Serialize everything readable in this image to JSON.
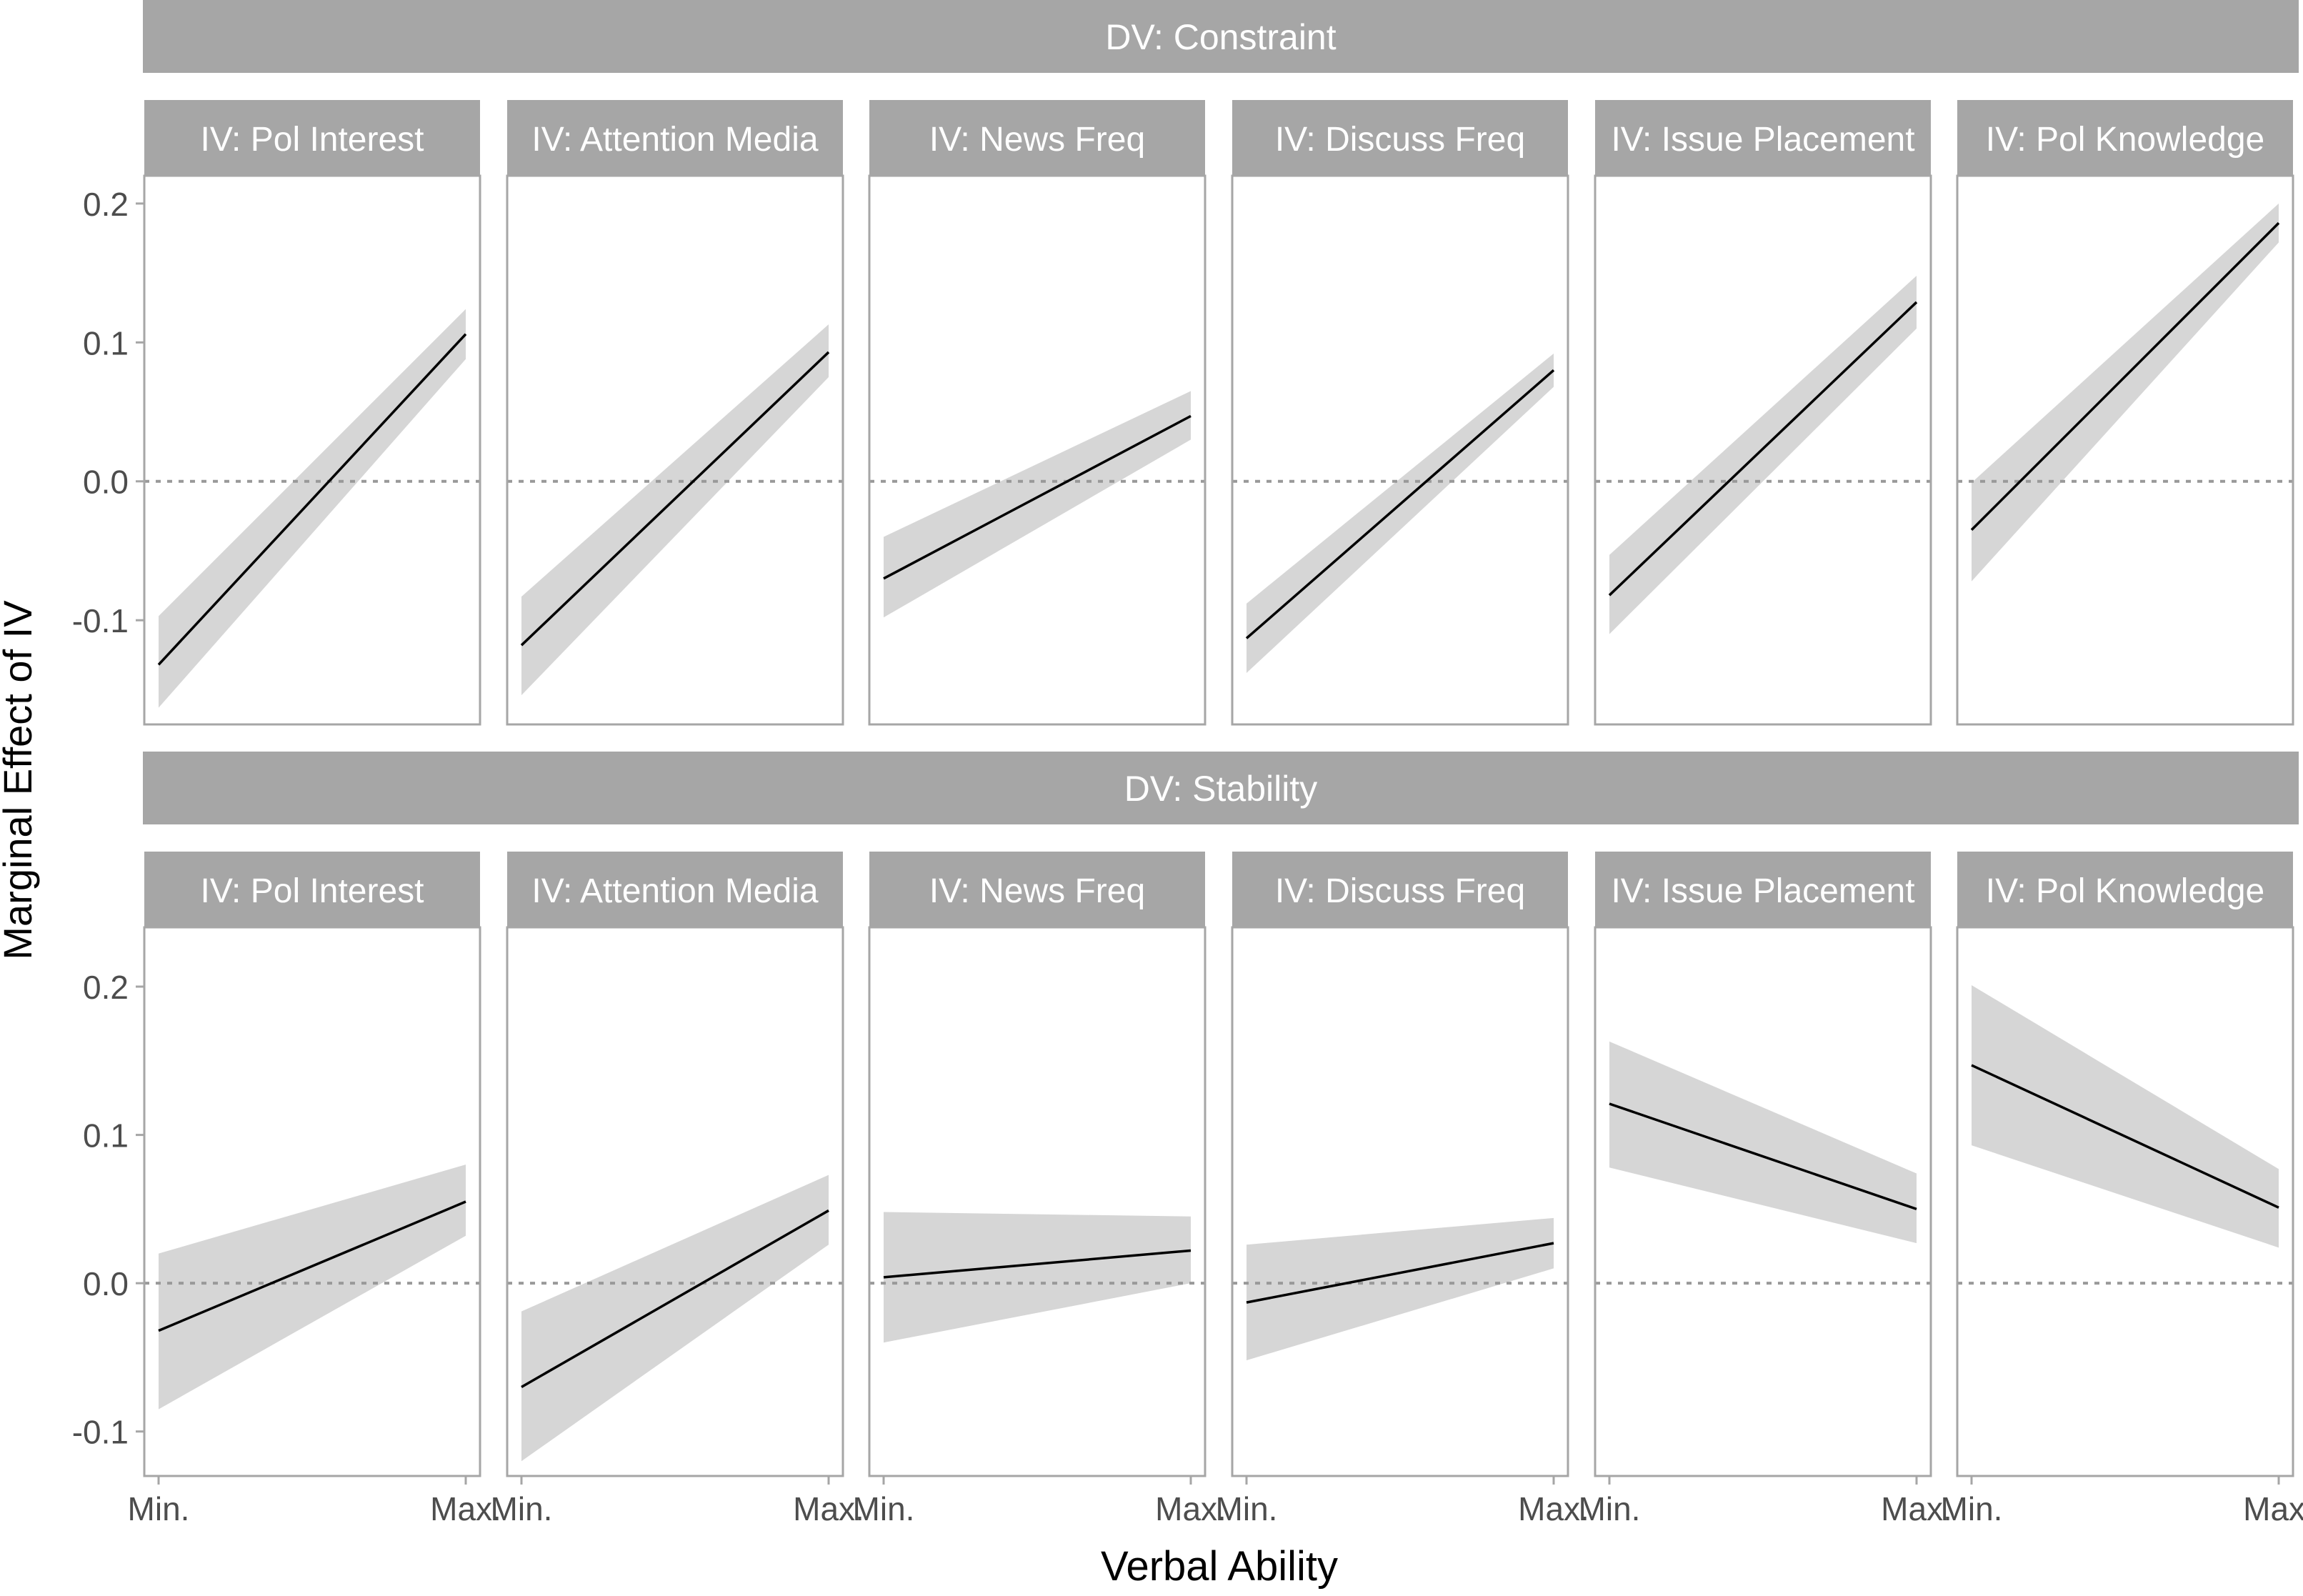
{
  "chart_data": {
    "type": "line",
    "xlabel": "Verbal Ability",
    "ylabel": "Marginal Effect of IV",
    "x_categories": [
      "Min.",
      "Max."
    ],
    "x_ticks": [
      "Min.",
      "Max."
    ],
    "reference_line": 0,
    "colors": {
      "strip": "#a6a6a6",
      "strip_text": "#ffffff",
      "band": "#d6d6d6",
      "line": "#000000",
      "frame": "#a6a6a6",
      "zero_line": "#999999",
      "tick_text": "#4d4d4d",
      "axis_title": "#000000"
    },
    "rows": [
      {
        "label": "DV: Constraint",
        "ylim": [
          -0.175,
          0.22
        ],
        "y_ticks": [
          {
            "value": 0.2,
            "label": "0.2"
          },
          {
            "value": 0.1,
            "label": "0.1"
          },
          {
            "value": 0.0,
            "label": "0.0"
          },
          {
            "value": -0.1,
            "label": "-0.1"
          }
        ],
        "panels": [
          {
            "label": "IV: Pol Interest",
            "y": [
              -0.132,
              0.106
            ],
            "lower": [
              -0.163,
              0.088
            ],
            "upper": [
              -0.097,
              0.124
            ]
          },
          {
            "label": "IV: Attention Media",
            "y": [
              -0.118,
              0.093
            ],
            "lower": [
              -0.154,
              0.075
            ],
            "upper": [
              -0.083,
              0.113
            ]
          },
          {
            "label": "IV: News Freq",
            "y": [
              -0.07,
              0.047
            ],
            "lower": [
              -0.098,
              0.03
            ],
            "upper": [
              -0.04,
              0.065
            ]
          },
          {
            "label": "IV: Discuss Freq",
            "y": [
              -0.113,
              0.08
            ],
            "lower": [
              -0.138,
              0.068
            ],
            "upper": [
              -0.088,
              0.092
            ]
          },
          {
            "label": "IV: Issue Placement",
            "y": [
              -0.082,
              0.129
            ],
            "lower": [
              -0.11,
              0.11
            ],
            "upper": [
              -0.053,
              0.148
            ]
          },
          {
            "label": "IV: Pol Knowledge",
            "y": [
              -0.035,
              0.186
            ],
            "lower": [
              -0.072,
              0.172
            ],
            "upper": [
              -0.001,
              0.2
            ]
          }
        ]
      },
      {
        "label": "DV: Stability",
        "ylim": [
          -0.13,
          0.24
        ],
        "y_ticks": [
          {
            "value": 0.2,
            "label": "0.2"
          },
          {
            "value": 0.1,
            "label": "0.1"
          },
          {
            "value": 0.0,
            "label": "0.0"
          },
          {
            "value": -0.1,
            "label": "-0.1"
          }
        ],
        "panels": [
          {
            "label": "IV: Pol Interest",
            "y": [
              -0.032,
              0.055
            ],
            "lower": [
              -0.085,
              0.032
            ],
            "upper": [
              0.02,
              0.08
            ]
          },
          {
            "label": "IV: Attention Media",
            "y": [
              -0.07,
              0.049
            ],
            "lower": [
              -0.12,
              0.026
            ],
            "upper": [
              -0.019,
              0.073
            ]
          },
          {
            "label": "IV: News Freq",
            "y": [
              0.004,
              0.022
            ],
            "lower": [
              -0.04,
              0.0
            ],
            "upper": [
              0.048,
              0.045
            ]
          },
          {
            "label": "IV: Discuss Freq",
            "y": [
              -0.013,
              0.027
            ],
            "lower": [
              -0.052,
              0.01
            ],
            "upper": [
              0.026,
              0.044
            ]
          },
          {
            "label": "IV: Issue Placement",
            "y": [
              0.121,
              0.05
            ],
            "lower": [
              0.078,
              0.027
            ],
            "upper": [
              0.163,
              0.074
            ]
          },
          {
            "label": "IV: Pol Knowledge",
            "y": [
              0.147,
              0.051
            ],
            "lower": [
              0.093,
              0.024
            ],
            "upper": [
              0.201,
              0.077
            ]
          }
        ]
      }
    ]
  }
}
